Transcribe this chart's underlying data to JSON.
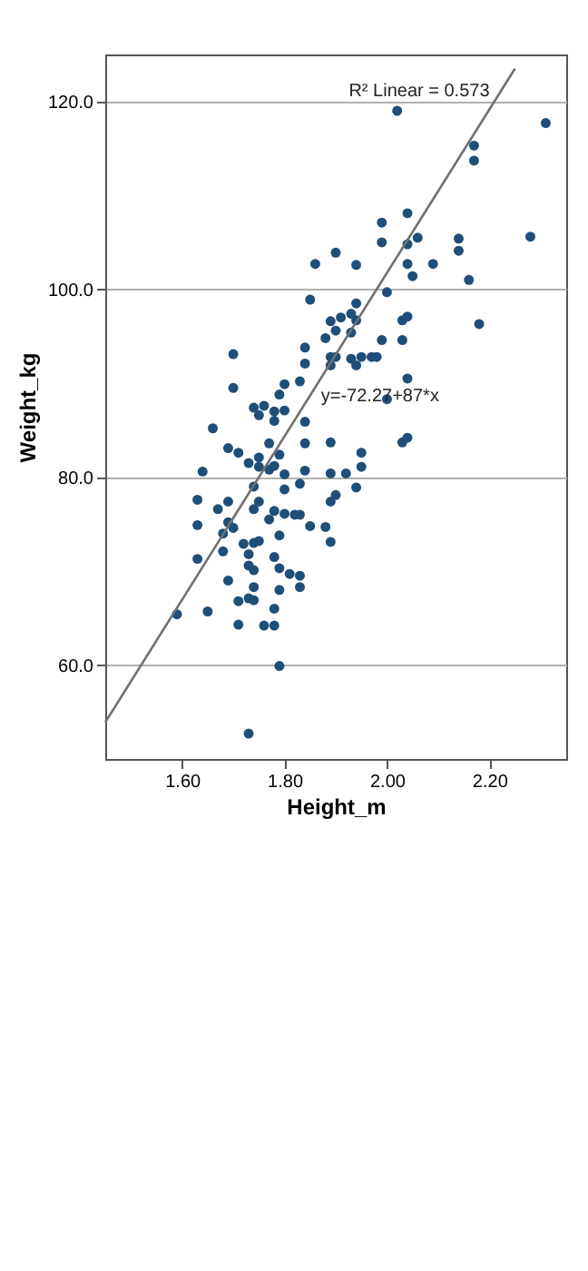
{
  "chart_data": {
    "type": "scatter",
    "xlabel": "Height_m",
    "ylabel": "Weight_kg",
    "xlim": [
      1.45,
      2.35
    ],
    "ylim": [
      50,
      125
    ],
    "xticks": [
      {
        "value": 1.6,
        "label": "1.60"
      },
      {
        "value": 1.8,
        "label": "1.80"
      },
      {
        "value": 2.0,
        "label": "2.00"
      },
      {
        "value": 2.2,
        "label": "2.20"
      }
    ],
    "yticks": [
      {
        "value": 60,
        "label": "60.0"
      },
      {
        "value": 80,
        "label": "80.0"
      },
      {
        "value": 100,
        "label": "100.0"
      },
      {
        "value": 120,
        "label": "120.0"
      }
    ],
    "grid": "y",
    "marker": "circle",
    "series": [
      {
        "color": "#1f4e79",
        "x": [
          1.59,
          1.63,
          1.63,
          1.63,
          1.64,
          1.65,
          1.67,
          1.66,
          1.68,
          1.68,
          1.69,
          1.69,
          1.69,
          1.69,
          1.7,
          1.7,
          1.71,
          1.71,
          1.7,
          1.72,
          1.71,
          1.73,
          1.73,
          1.73,
          1.73,
          1.73,
          1.74,
          1.74,
          1.74,
          1.74,
          1.74,
          1.74,
          1.74,
          1.75,
          1.75,
          1.75,
          1.75,
          1.75,
          1.76,
          1.77,
          1.77,
          1.77,
          1.76,
          1.78,
          1.78,
          1.78,
          1.78,
          1.78,
          1.78,
          1.78,
          1.79,
          1.79,
          1.79,
          1.79,
          1.79,
          1.79,
          1.81,
          1.8,
          1.8,
          1.8,
          1.8,
          1.8,
          1.82,
          1.83,
          1.83,
          1.83,
          1.83,
          1.83,
          1.84,
          1.84,
          1.84,
          1.84,
          1.84,
          1.85,
          1.85,
          1.86,
          1.88,
          1.88,
          1.89,
          1.89,
          1.89,
          1.89,
          1.89,
          1.89,
          1.89,
          1.9,
          1.9,
          1.9,
          1.9,
          1.91,
          1.92,
          1.93,
          1.93,
          1.93,
          1.94,
          1.94,
          1.94,
          1.94,
          1.94,
          1.95,
          1.95,
          1.95,
          1.97,
          1.98,
          1.99,
          1.99,
          1.99,
          2.0,
          2.0,
          2.02,
          2.03,
          2.03,
          2.03,
          2.04,
          2.04,
          2.04,
          2.04,
          2.04,
          2.04,
          2.05,
          2.06,
          2.09,
          2.18,
          2.16,
          2.14,
          2.14,
          2.17,
          2.17,
          2.28,
          2.31
        ],
        "values": [
          65.4,
          71.3,
          74.9,
          77.6,
          80.6,
          65.7,
          76.6,
          85.2,
          72.1,
          74.0,
          69.0,
          75.2,
          77.4,
          83.1,
          89.5,
          93.1,
          64.3,
          66.8,
          74.6,
          72.9,
          82.6,
          52.7,
          67.1,
          70.6,
          71.8,
          81.5,
          66.9,
          68.3,
          70.1,
          73.0,
          76.6,
          79.0,
          87.4,
          73.2,
          77.4,
          81.1,
          82.1,
          86.6,
          64.2,
          75.5,
          80.8,
          83.6,
          87.6,
          64.2,
          66.0,
          71.5,
          76.4,
          81.2,
          86.0,
          87.0,
          68.0,
          70.3,
          73.8,
          82.4,
          88.8,
          59.9,
          69.7,
          76.1,
          78.7,
          80.3,
          87.1,
          89.9,
          76.0,
          68.3,
          69.5,
          76.0,
          79.3,
          90.2,
          80.7,
          83.6,
          85.9,
          92.1,
          93.8,
          74.8,
          98.9,
          102.7,
          94.8,
          74.7,
          73.1,
          77.4,
          80.4,
          83.7,
          91.9,
          92.8,
          96.6,
          78.1,
          92.8,
          95.6,
          103.9,
          97.0,
          80.4,
          92.6,
          95.4,
          97.4,
          78.9,
          91.9,
          96.7,
          98.5,
          102.6,
          81.1,
          82.6,
          92.8,
          92.8,
          92.8,
          94.6,
          105.0,
          107.1,
          88.3,
          99.7,
          119.0,
          83.7,
          94.6,
          96.7,
          84.2,
          90.5,
          97.1,
          102.7,
          104.8,
          108.1,
          101.4,
          105.5,
          102.7,
          96.3,
          101.0,
          104.1,
          105.4,
          113.7,
          115.3,
          105.6,
          117.7
        ]
      },
      {
        "type": "line",
        "marker": "none",
        "color": "#707070",
        "x": [
          1.45,
          2.25
        ],
        "values": [
          53.9,
          123.5
        ]
      }
    ],
    "annotations": [
      {
        "text": "y=-72.27+87*x",
        "x": 1.85,
        "y": 88.68
      },
      {
        "text": "R² Linear = 0.573",
        "x": 2.25,
        "y": 123.5
      }
    ]
  }
}
